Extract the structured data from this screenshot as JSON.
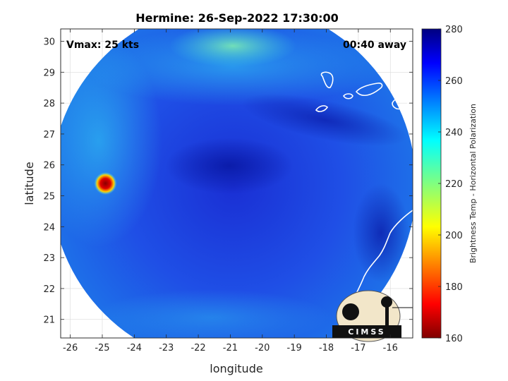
{
  "chart_data": {
    "type": "heatmap",
    "title": "Hermine: 26-Sep-2022 17:30:00",
    "xlabel": "longitude",
    "ylabel": "latitude",
    "xlim": [
      -26.3,
      -15.3
    ],
    "ylim": [
      20.4,
      30.4
    ],
    "x_ticks": [
      -26,
      -25,
      -24,
      -23,
      -22,
      -21,
      -20,
      -19,
      -18,
      -17,
      -16
    ],
    "y_ticks": [
      21,
      22,
      23,
      24,
      25,
      26,
      27,
      28,
      29,
      30
    ],
    "grid": true,
    "annotations": {
      "vmax": "Vmax: 25 kts",
      "away": "00:40 away"
    },
    "colorbar": {
      "label": "Brightness Temp - Horizontal Polarization",
      "range": [
        160,
        280
      ],
      "ticks": [
        160,
        180,
        200,
        220,
        240,
        260,
        280
      ],
      "colormap": "jet"
    },
    "swath": {
      "center_lon": -20.9,
      "center_lat": 25.35,
      "radius_deg": 5.7
    },
    "features": [
      {
        "name": "warm spot",
        "lon": -24.9,
        "lat": 25.4,
        "value": 172
      },
      {
        "name": "cold core",
        "lon": -21.0,
        "lat": 25.9,
        "value": 270
      },
      {
        "name": "green patch",
        "lon": -21.0,
        "lat": 29.7,
        "value": 232
      }
    ]
  },
  "logo": {
    "text": "CIMSS"
  }
}
